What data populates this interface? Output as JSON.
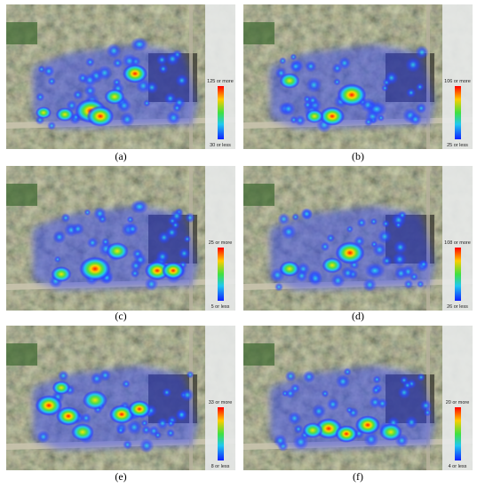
{
  "panels": [
    {
      "caption": "(a)",
      "legend": {
        "max_label": "125 or more",
        "min_label": "30 or less"
      }
    },
    {
      "caption": "(b)",
      "legend": {
        "max_label": "106 or more",
        "min_label": "25 or less"
      }
    },
    {
      "caption": "(c)",
      "legend": {
        "max_label": "25 or more",
        "min_label": "5 or less"
      }
    },
    {
      "caption": "(d)",
      "legend": {
        "max_label": "108 or more",
        "min_label": "26 or less"
      }
    },
    {
      "caption": "(e)",
      "legend": {
        "max_label": "33 or more",
        "min_label": "8 or less"
      }
    },
    {
      "caption": "(f)",
      "legend": {
        "max_label": "20 or more",
        "min_label": "4 or less"
      }
    }
  ]
}
